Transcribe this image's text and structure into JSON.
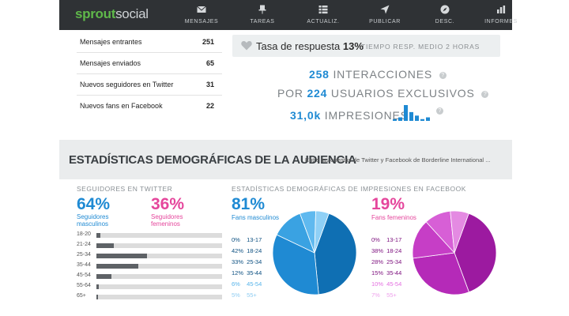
{
  "brand": {
    "part1": "sprout",
    "part2": "social"
  },
  "nav": [
    {
      "label": "MENSAJES",
      "icon": "envelope-icon"
    },
    {
      "label": "TAREAS",
      "icon": "pin-icon"
    },
    {
      "label": "ACTUALIZ.",
      "icon": "list-icon"
    },
    {
      "label": "PUBLICAR",
      "icon": "send-icon"
    },
    {
      "label": "DESC.",
      "icon": "compass-icon"
    },
    {
      "label": "INFORMES",
      "icon": "bar-chart-icon"
    }
  ],
  "stats": [
    {
      "label": "Mensajes entrantes",
      "value": "251"
    },
    {
      "label": "Mensajes enviados",
      "value": "65"
    },
    {
      "label": "Nuevos seguidores en Twitter",
      "value": "31"
    },
    {
      "label": "Nuevos fans en Facebook",
      "value": "22"
    }
  ],
  "response": {
    "label": "Tasa de respuesta",
    "value": "13%",
    "sub": "TIEMPO RESP. MEDIO 2 HORAS"
  },
  "metrics": {
    "interactions_num": "258",
    "interactions_label": "INTERACCIONES",
    "users_prefix": "POR",
    "users_num": "224",
    "users_label": "USUARIOS EXCLUSIVOS",
    "impressions_num": "31,0k",
    "impressions_label": "IMPRESIONES"
  },
  "section": {
    "title": "ESTADÍSTICAS DEMOGRÁFICAS DE LA AUDIENCIA",
    "subtitle": "Entre las cuentas de Twitter y Facebook de Borderline International ..."
  },
  "twitter": {
    "title": "SEGUIDORES EN TWITTER",
    "male_pct": "64%",
    "male_label_1": "Seguidores",
    "male_label_2": "masculinos",
    "female_pct": "36%",
    "female_label_1": "Seguidores",
    "female_label_2": "femeninos",
    "ages": [
      {
        "label": "18-20",
        "share": 0.03
      },
      {
        "label": "21-24",
        "share": 0.14
      },
      {
        "label": "25-34",
        "share": 0.4
      },
      {
        "label": "35-44",
        "share": 0.33
      },
      {
        "label": "45-54",
        "share": 0.12
      },
      {
        "label": "55-64",
        "share": 0.02
      },
      {
        "label": "65+",
        "share": 0.01
      }
    ]
  },
  "facebook": {
    "title": "ESTADÍSTICAS DEMOGRÁFICAS DE IMPRESIONES EN FACEBOOK",
    "male_pct": "81%",
    "male_label": "Fans masculinos",
    "female_pct": "19%",
    "female_label": "Fans femeninos",
    "male_rows": [
      {
        "pct": "0%",
        "age": "13-17",
        "value": 0
      },
      {
        "pct": "42%",
        "age": "18-24",
        "value": 42
      },
      {
        "pct": "33%",
        "age": "25-34",
        "value": 33
      },
      {
        "pct": "12%",
        "age": "35-44",
        "value": 12
      },
      {
        "pct": "6%",
        "age": "45-54",
        "value": 6
      },
      {
        "pct": "5%",
        "age": "55+",
        "value": 5
      }
    ],
    "female_rows": [
      {
        "pct": "0%",
        "age": "13-17",
        "value": 0
      },
      {
        "pct": "38%",
        "age": "18-24",
        "value": 38
      },
      {
        "pct": "28%",
        "age": "25-34",
        "value": 28
      },
      {
        "pct": "15%",
        "age": "35-44",
        "value": 15
      },
      {
        "pct": "10%",
        "age": "45-54",
        "value": 10
      },
      {
        "pct": "7%",
        "age": "55+",
        "value": 7
      }
    ],
    "male_colors": [
      "#0b5d96",
      "#0f6fb3",
      "#1f8ad3",
      "#3aa2e2",
      "#5fb9ef",
      "#8fd0f6"
    ],
    "female_colors": [
      "#6e0f73",
      "#9c1aa0",
      "#b52ab8",
      "#c63ec6",
      "#d75fd6",
      "#e48ae2"
    ]
  },
  "impressions_sparkline": [
    1,
    2,
    9,
    5,
    3,
    1,
    2
  ],
  "colors": {
    "accent_blue": "#1f8ad3",
    "accent_pink": "#e5469c",
    "nav_bg": "#2f3235"
  }
}
